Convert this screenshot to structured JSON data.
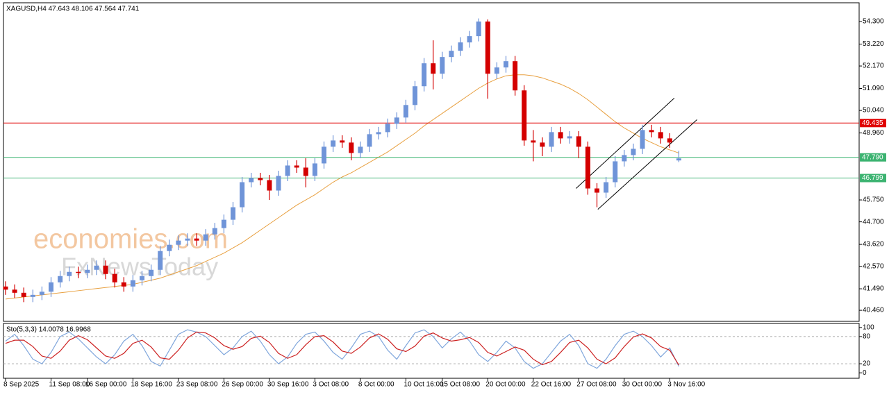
{
  "chart_data": [
    {
      "type": "candlestick",
      "title": "XAGUSD,H4  47.643 48.106 47.564 47.741",
      "categories": [
        "8 Sep 2025",
        null,
        null,
        null,
        null,
        "11 Sep 08:00",
        null,
        null,
        null,
        "16 Sep 00:00",
        null,
        null,
        null,
        null,
        "18 Sep 16:00",
        null,
        null,
        null,
        null,
        "23 Sep 08:00",
        null,
        null,
        null,
        null,
        "26 Sep 00:00",
        null,
        null,
        null,
        null,
        "30 Sep 16:00",
        null,
        null,
        null,
        null,
        "3 Oct 08:00",
        null,
        null,
        null,
        null,
        "8 Oct 00:00",
        null,
        null,
        null,
        null,
        "10 Oct 16:00",
        null,
        null,
        null,
        "15 Oct 08:00",
        null,
        null,
        null,
        null,
        "20 Oct 00:00",
        null,
        null,
        null,
        null,
        "22 Oct 16:00",
        null,
        null,
        null,
        null,
        "27 Oct 08:00",
        null,
        null,
        null,
        null,
        "30 Oct 00:00",
        null,
        null,
        null,
        null,
        "3 Nov 16:00",
        null
      ],
      "open": [
        41.6,
        41.45,
        41.3,
        41.1,
        41.2,
        41.35,
        41.8,
        42.1,
        42.3,
        42.25,
        42.4,
        42.6,
        42.2,
        41.8,
        41.6,
        41.9,
        42.1,
        42.4,
        43.3,
        43.6,
        43.8,
        43.9,
        43.8,
        44.1,
        44.4,
        44.8,
        45.4,
        46.6,
        46.8,
        46.7,
        46.2,
        46.9,
        47.4,
        47.3,
        46.9,
        47.5,
        48.3,
        48.6,
        48.5,
        48.0,
        48.3,
        48.9,
        49.0,
        49.4,
        49.7,
        50.3,
        51.2,
        52.3,
        51.8,
        52.6,
        52.9,
        53.3,
        53.6,
        54.3,
        51.8,
        52.1,
        52.4,
        51.0,
        48.6,
        48.5,
        48.3,
        49.0,
        48.7,
        48.8,
        48.3,
        46.3,
        46.1,
        46.6,
        47.6,
        47.9,
        48.2,
        49.1,
        49.0,
        48.7,
        47.643
      ],
      "high": [
        41.85,
        41.7,
        41.55,
        41.45,
        41.6,
        42.05,
        42.35,
        42.55,
        42.55,
        42.65,
        42.85,
        42.85,
        42.45,
        42.05,
        42.15,
        42.35,
        42.65,
        43.55,
        43.85,
        44.05,
        44.15,
        44.15,
        44.35,
        44.65,
        45.05,
        45.65,
        46.85,
        47.05,
        47.05,
        46.95,
        47.15,
        47.65,
        47.65,
        47.75,
        47.75,
        48.55,
        48.85,
        48.85,
        48.75,
        48.55,
        49.15,
        49.25,
        49.65,
        49.95,
        50.55,
        51.45,
        52.55,
        53.4,
        52.85,
        53.15,
        53.55,
        53.85,
        54.45,
        54.4,
        52.35,
        52.65,
        52.65,
        51.25,
        49.1,
        48.75,
        49.25,
        49.25,
        49.05,
        49.05,
        48.55,
        46.55,
        46.85,
        47.85,
        48.15,
        48.45,
        49.35,
        49.35,
        49.25,
        48.95,
        48.106
      ],
      "low": [
        41.2,
        41.05,
        40.85,
        40.85,
        40.95,
        41.1,
        41.55,
        41.85,
        42.0,
        42.0,
        42.15,
        41.95,
        41.55,
        41.35,
        41.35,
        41.65,
        41.85,
        42.15,
        43.05,
        43.35,
        43.55,
        43.55,
        43.55,
        43.85,
        44.15,
        44.55,
        45.15,
        46.35,
        46.45,
        45.75,
        45.95,
        46.65,
        47.05,
        46.35,
        46.65,
        47.25,
        48.05,
        48.25,
        47.65,
        47.75,
        48.05,
        48.65,
        48.75,
        49.15,
        49.45,
        50.05,
        50.95,
        51.05,
        51.55,
        52.35,
        52.65,
        53.05,
        53.35,
        50.6,
        51.55,
        51.85,
        50.75,
        48.35,
        47.6,
        47.85,
        48.05,
        48.45,
        48.45,
        47.75,
        46.0,
        45.4,
        45.85,
        46.35,
        47.35,
        47.65,
        47.95,
        48.75,
        48.45,
        48.25,
        47.564
      ],
      "close": [
        41.45,
        41.3,
        41.1,
        41.2,
        41.35,
        41.8,
        42.1,
        42.3,
        42.25,
        42.4,
        42.6,
        42.2,
        41.8,
        41.6,
        41.9,
        42.1,
        42.4,
        43.3,
        43.6,
        43.8,
        43.9,
        43.8,
        44.1,
        44.4,
        44.8,
        45.4,
        46.6,
        46.8,
        46.7,
        46.2,
        46.9,
        47.4,
        47.3,
        46.9,
        47.5,
        48.3,
        48.6,
        48.5,
        48.0,
        48.3,
        48.9,
        49.0,
        49.4,
        49.7,
        50.3,
        51.2,
        52.3,
        51.8,
        52.6,
        52.9,
        53.3,
        53.6,
        54.3,
        51.8,
        52.1,
        52.4,
        51.0,
        48.6,
        48.5,
        48.3,
        49.0,
        48.7,
        48.8,
        48.3,
        46.3,
        46.1,
        46.6,
        47.6,
        47.9,
        48.2,
        49.1,
        49.0,
        48.7,
        48.5,
        47.741
      ],
      "up_color": "#6f94d8",
      "down_color": "#d40000",
      "ma": {
        "color": "#e8a040",
        "values": [
          41.0,
          41.05,
          41.1,
          41.15,
          41.2,
          41.25,
          41.3,
          41.35,
          41.4,
          41.45,
          41.5,
          41.55,
          41.6,
          41.65,
          41.7,
          41.8,
          41.9,
          42.0,
          42.15,
          42.3,
          42.45,
          42.6,
          42.8,
          43.0,
          43.2,
          43.45,
          43.7,
          44.0,
          44.3,
          44.6,
          44.9,
          45.2,
          45.5,
          45.75,
          46.0,
          46.3,
          46.6,
          46.85,
          47.05,
          47.3,
          47.55,
          47.8,
          48.05,
          48.35,
          48.65,
          48.95,
          49.3,
          49.6,
          49.9,
          50.2,
          50.5,
          50.8,
          51.1,
          51.35,
          51.55,
          51.7,
          51.75,
          51.75,
          51.7,
          51.6,
          51.45,
          51.3,
          51.1,
          50.85,
          50.55,
          50.2,
          49.85,
          49.5,
          49.2,
          48.95,
          48.7,
          48.5,
          48.3,
          48.15,
          48.0
        ]
      },
      "levels": [
        {
          "value": 49.435,
          "label": "49.435",
          "color": "#e00000"
        },
        {
          "value": 47.79,
          "label": "47.790",
          "color": "#3cb371"
        },
        {
          "value": 46.799,
          "label": "46.799",
          "color": "#3cb371"
        }
      ],
      "trendlines": [
        {
          "x": [
            62.7,
            73.5
          ],
          "y": [
            46.3,
            50.63
          ]
        },
        {
          "x": [
            65.1,
            76
          ],
          "y": [
            45.3,
            49.6
          ]
        }
      ],
      "ylim": [
        39.93,
        55.2
      ],
      "yticks": [
        {
          "value": 54.3,
          "label": "54.300"
        },
        {
          "value": 53.22,
          "label": "53.220"
        },
        {
          "value": 52.17,
          "label": "52.170"
        },
        {
          "value": 51.09,
          "label": "51.090"
        },
        {
          "value": 50.04,
          "label": "50.040"
        },
        {
          "value": 48.96,
          "label": "48.960"
        },
        {
          "value": 45.75,
          "label": "45.750"
        },
        {
          "value": 44.7,
          "label": "44.700"
        },
        {
          "value": 43.62,
          "label": "43.620"
        },
        {
          "value": 42.57,
          "label": "42.570"
        },
        {
          "value": 41.49,
          "label": "41.490"
        },
        {
          "value": 40.46,
          "label": "40.460"
        }
      ],
      "watermarks": [
        "economies.com",
        "FxNewsToday"
      ]
    },
    {
      "type": "line",
      "title": "Sto(5,3,3) 14.0078 16.9968",
      "ylim": [
        -12,
        109
      ],
      "yticks": [
        100,
        80,
        20,
        0
      ],
      "levels": [
        80,
        20
      ],
      "series": [
        {
          "color": "#7fa6dc",
          "values": [
            70,
            85,
            60,
            30,
            20,
            45,
            80,
            90,
            75,
            55,
            35,
            20,
            40,
            70,
            85,
            60,
            25,
            15,
            50,
            85,
            95,
            90,
            80,
            60,
            40,
            55,
            80,
            92,
            70,
            40,
            20,
            35,
            65,
            85,
            90,
            70,
            45,
            30,
            55,
            85,
            92,
            80,
            50,
            30,
            60,
            88,
            95,
            80,
            55,
            75,
            90,
            70,
            40,
            25,
            45,
            70,
            55,
            25,
            10,
            20,
            45,
            70,
            85,
            60,
            20,
            10,
            30,
            60,
            85,
            92,
            80,
            60,
            35,
            55,
            14.0078
          ]
        },
        {
          "color": "#cc2020",
          "values": [
            65,
            72,
            72,
            58,
            37,
            32,
            48,
            72,
            82,
            73,
            55,
            37,
            32,
            43,
            65,
            72,
            57,
            33,
            30,
            50,
            77,
            90,
            88,
            77,
            60,
            52,
            58,
            76,
            81,
            67,
            43,
            32,
            40,
            62,
            80,
            82,
            68,
            48,
            43,
            57,
            77,
            86,
            74,
            53,
            47,
            59,
            81,
            88,
            77,
            70,
            73,
            78,
            67,
            45,
            37,
            47,
            57,
            50,
            30,
            18,
            25,
            45,
            67,
            72,
            55,
            30,
            20,
            33,
            58,
            79,
            86,
            77,
            58,
            50,
            16.9968
          ]
        }
      ]
    }
  ]
}
